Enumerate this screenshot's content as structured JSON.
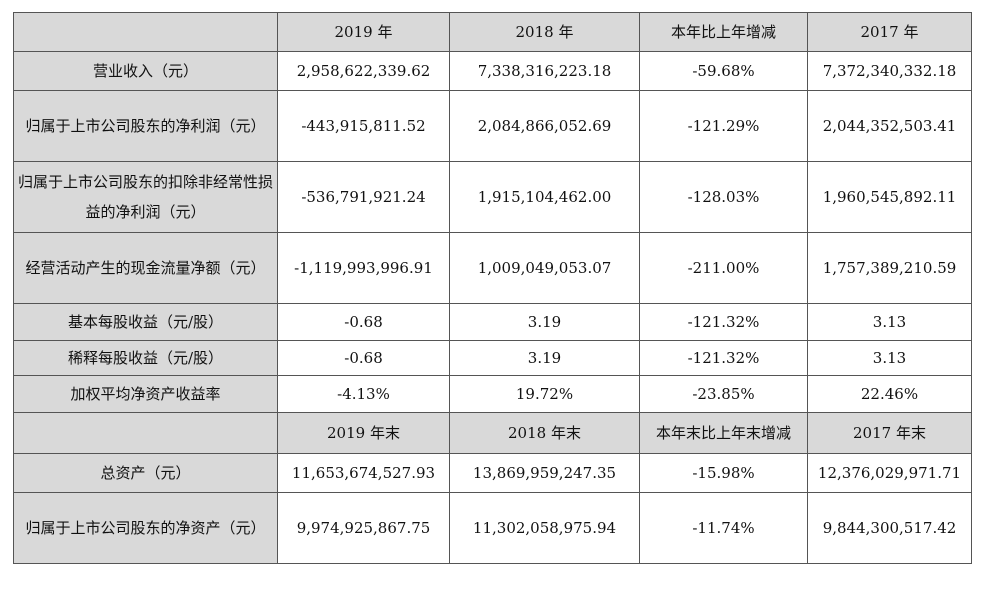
{
  "table": {
    "header_top": [
      "",
      "2019 年",
      "2018 年",
      "本年比上年增减",
      "2017 年"
    ],
    "rows_top": [
      {
        "label": "营业收入（元）",
        "v2019": "2,958,622,339.62",
        "v2018": "7,338,316,223.18",
        "change": "-59.68%",
        "v2017": "7,372,340,332.18"
      },
      {
        "label": "归属于上市公司股东的净利润（元）",
        "v2019": "-443,915,811.52",
        "v2018": "2,084,866,052.69",
        "change": "-121.29%",
        "v2017": "2,044,352,503.41"
      },
      {
        "label": "归属于上市公司股东的扣除非经常性损益的净利润（元）",
        "v2019": "-536,791,921.24",
        "v2018": "1,915,104,462.00",
        "change": "-128.03%",
        "v2017": "1,960,545,892.11"
      },
      {
        "label": "经营活动产生的现金流量净额（元）",
        "v2019": "-1,119,993,996.91",
        "v2018": "1,009,049,053.07",
        "change": "-211.00%",
        "v2017": "1,757,389,210.59"
      },
      {
        "label": "基本每股收益（元/股）",
        "v2019": "-0.68",
        "v2018": "3.19",
        "change": "-121.32%",
        "v2017": "3.13"
      },
      {
        "label": "稀释每股收益（元/股）",
        "v2019": "-0.68",
        "v2018": "3.19",
        "change": "-121.32%",
        "v2017": "3.13"
      },
      {
        "label": "加权平均净资产收益率",
        "v2019": "-4.13%",
        "v2018": "19.72%",
        "change": "-23.85%",
        "v2017": "22.46%"
      }
    ],
    "header_bottom": [
      "",
      "2019 年末",
      "2018 年末",
      "本年末比上年末增减",
      "2017 年末"
    ],
    "rows_bottom": [
      {
        "label": "总资产（元）",
        "v2019": "11,653,674,527.93",
        "v2018": "13,869,959,247.35",
        "change": "-15.98%",
        "v2017": "12,376,029,971.71"
      },
      {
        "label": "归属于上市公司股东的净资产（元）",
        "v2019": "9,974,925,867.75",
        "v2018": "11,302,058,975.94",
        "change": "-11.74%",
        "v2017": "9,844,300,517.42"
      }
    ]
  }
}
